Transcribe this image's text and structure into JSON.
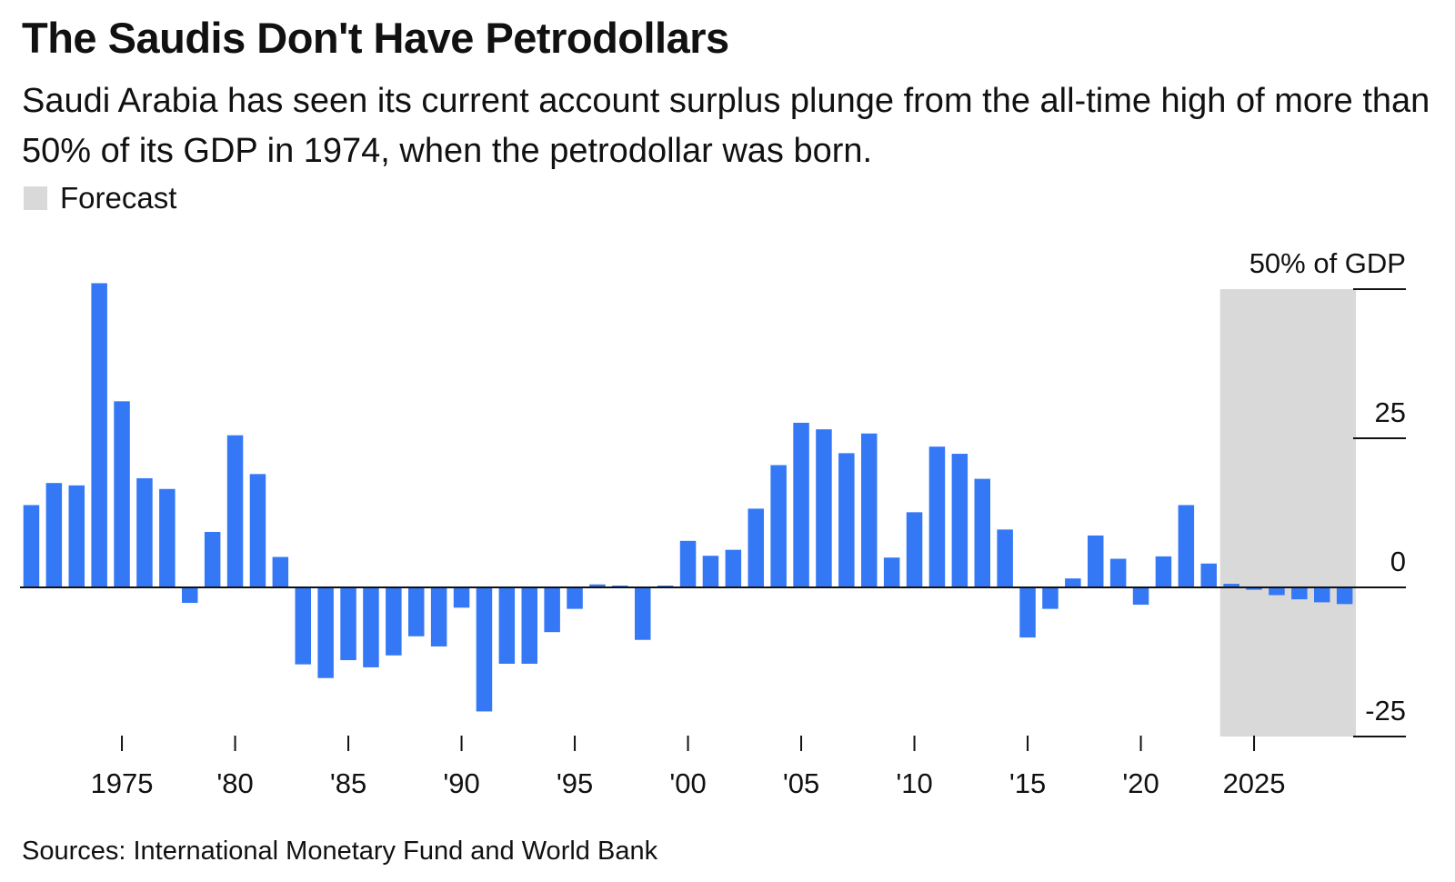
{
  "header": {
    "title": "The Saudis Don't Have Petrodollars",
    "subtitle": "Saudi Arabia has seen its current account surplus plunge from the all-time high of more than 50% of its GDP in 1974, when the petrodollar was born."
  },
  "legend": {
    "forecast_label": "Forecast",
    "forecast_color": "#d9d9d9"
  },
  "footer": {
    "source": "Sources: International Monetary Fund and World Bank"
  },
  "chart_data": {
    "type": "bar",
    "bar_color": "#3478f6",
    "unit_label": "50% of GDP",
    "ylim": [
      -25,
      50
    ],
    "y_ticks": [
      {
        "value": 50,
        "label": "50% of GDP"
      },
      {
        "value": 25,
        "label": "25"
      },
      {
        "value": 0,
        "label": "0"
      },
      {
        "value": -25,
        "label": "-25"
      }
    ],
    "x_ticks": [
      {
        "year": 1975,
        "label": "1975"
      },
      {
        "year": 1980,
        "label": "'80"
      },
      {
        "year": 1985,
        "label": "'85"
      },
      {
        "year": 1990,
        "label": "'90"
      },
      {
        "year": 1995,
        "label": "'95"
      },
      {
        "year": 2000,
        "label": "'00"
      },
      {
        "year": 2005,
        "label": "'05"
      },
      {
        "year": 2010,
        "label": "'10"
      },
      {
        "year": 2015,
        "label": "'15"
      },
      {
        "year": 2020,
        "label": "'20"
      },
      {
        "year": 2025,
        "label": "2025"
      }
    ],
    "forecast_range": [
      2024,
      2029
    ],
    "categories": [
      1971,
      1972,
      1973,
      1974,
      1975,
      1976,
      1977,
      1978,
      1979,
      1980,
      1981,
      1982,
      1983,
      1984,
      1985,
      1986,
      1987,
      1988,
      1989,
      1990,
      1991,
      1992,
      1993,
      1994,
      1995,
      1996,
      1997,
      1998,
      1999,
      2000,
      2001,
      2002,
      2003,
      2004,
      2005,
      2006,
      2007,
      2008,
      2009,
      2010,
      2011,
      2012,
      2013,
      2014,
      2015,
      2016,
      2017,
      2018,
      2019,
      2020,
      2021,
      2022,
      2023,
      2024,
      2025,
      2026,
      2027,
      2028,
      2029
    ],
    "values": [
      13.8,
      17.5,
      17.1,
      51,
      31.2,
      18.3,
      16.5,
      -2.6,
      9.3,
      25.5,
      19,
      5.1,
      -12.9,
      -15.2,
      -12.2,
      -13.4,
      -11.4,
      -8.2,
      -9.9,
      -3.4,
      -20.8,
      -12.8,
      -12.8,
      -7.5,
      -3.6,
      0.5,
      0.3,
      -8.8,
      0.3,
      7.8,
      5.3,
      6.3,
      13.2,
      20.5,
      27.6,
      26.5,
      22.5,
      25.8,
      5,
      12.6,
      23.6,
      22.4,
      18.2,
      9.7,
      -8.4,
      -3.6,
      1.5,
      8.7,
      4.8,
      -2.9,
      5.2,
      13.8,
      4,
      0.6,
      -0.4,
      -1.3,
      -2,
      -2.5,
      -2.8
    ]
  }
}
